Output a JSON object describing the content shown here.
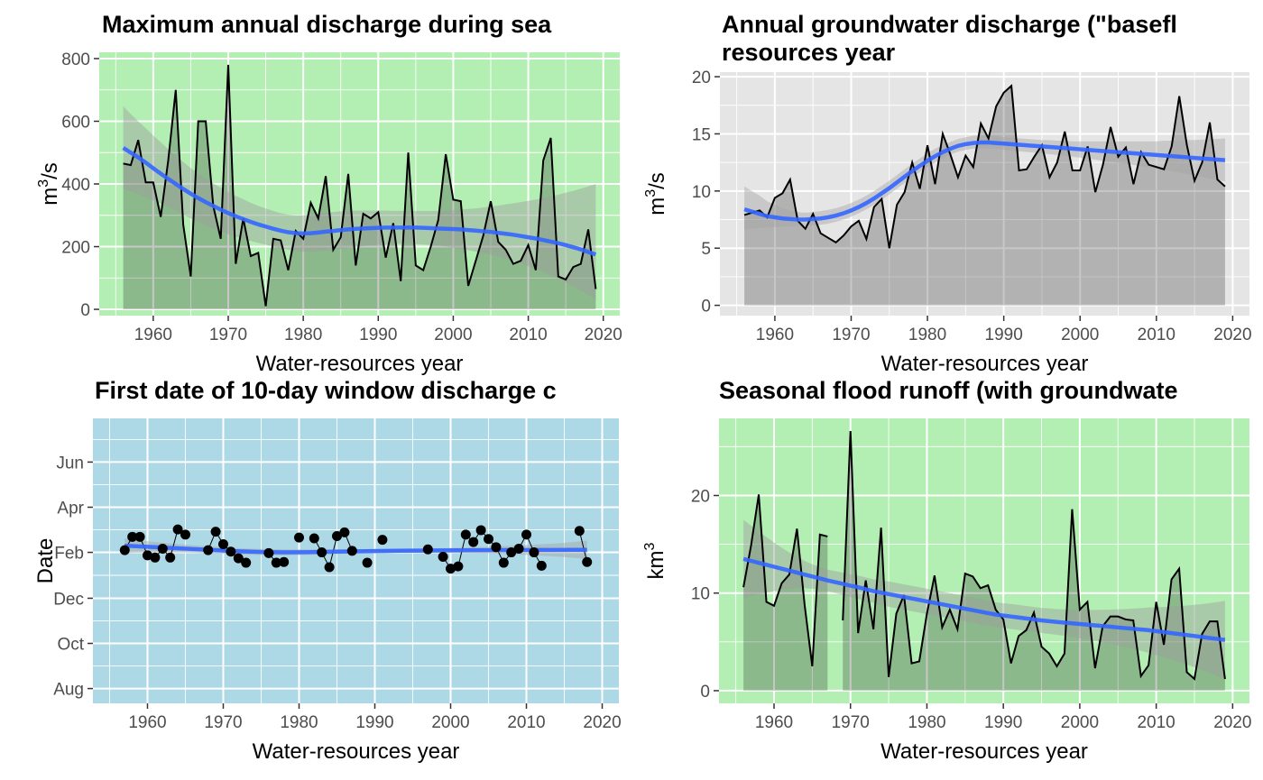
{
  "chart_data": [
    {
      "type": "line",
      "title": "Maximum annual discharge during sea",
      "xlabel": "Water-resources year",
      "ylabel_base": "m",
      "ylabel_sup": "3",
      "ylabel_rest": "/s",
      "xlim": [
        1952.8,
        2022.2
      ],
      "ylim": [
        -20,
        820
      ],
      "xticks": [
        1960,
        1970,
        1980,
        1990,
        2000,
        2010,
        2020
      ],
      "yticks": [
        0,
        200,
        400,
        600,
        800
      ],
      "background_color": "#b3eeb3",
      "grid": true,
      "x": [
        1956,
        1957,
        1958,
        1959,
        1960,
        1961,
        1962,
        1963,
        1964,
        1965,
        1966,
        1967,
        1968,
        1969,
        1970,
        1971,
        1972,
        1973,
        1974,
        1975,
        1976,
        1977,
        1978,
        1979,
        1980,
        1981,
        1982,
        1983,
        1984,
        1985,
        1986,
        1987,
        1988,
        1989,
        1990,
        1991,
        1992,
        1993,
        1994,
        1995,
        1996,
        1997,
        1998,
        1999,
        2000,
        2001,
        2002,
        2003,
        2004,
        2005,
        2006,
        2007,
        2008,
        2009,
        2010,
        2011,
        2012,
        2013,
        2014,
        2015,
        2016,
        2017,
        2018,
        2019
      ],
      "values": [
        465,
        460,
        540,
        405,
        405,
        295,
        475,
        700,
        270,
        105,
        600,
        600,
        330,
        225,
        780,
        145,
        290,
        170,
        180,
        10,
        225,
        220,
        125,
        250,
        225,
        340,
        290,
        425,
        190,
        230,
        432,
        140,
        305,
        290,
        310,
        165,
        275,
        90,
        500,
        140,
        125,
        200,
        285,
        495,
        350,
        345,
        75,
        155,
        235,
        345,
        215,
        190,
        145,
        155,
        205,
        125,
        475,
        547,
        105,
        95,
        135,
        145,
        255,
        65
      ],
      "trend": [
        515,
        500,
        485,
        468,
        450,
        433,
        416,
        400,
        384,
        369,
        355,
        342,
        330,
        318,
        307,
        297,
        288,
        279,
        271,
        264,
        257,
        251,
        246,
        243,
        242,
        243,
        245,
        248,
        250,
        253,
        255,
        257,
        258,
        259,
        260,
        261,
        261,
        261,
        261,
        261,
        260,
        259,
        258,
        257,
        256,
        255,
        253,
        251,
        249,
        247,
        244,
        241,
        238,
        234,
        230,
        226,
        221,
        216,
        211,
        205,
        198,
        191,
        183,
        175
      ],
      "band_low": [
        385,
        377,
        368,
        358,
        348,
        337,
        326,
        314,
        302,
        290,
        279,
        268,
        258,
        249,
        240,
        232,
        225,
        218,
        212,
        206,
        200,
        195,
        190,
        186,
        184,
        184,
        185,
        187,
        190,
        193,
        196,
        199,
        202,
        204,
        206,
        207,
        208,
        209,
        209,
        208,
        207,
        205,
        203,
        200,
        197,
        193,
        189,
        184,
        179,
        174,
        168,
        161,
        154,
        146,
        138,
        129,
        119,
        109,
        98,
        86,
        74,
        60,
        46,
        30
      ],
      "band_high": [
        648,
        623,
        600,
        578,
        555,
        533,
        511,
        490,
        470,
        451,
        433,
        417,
        402,
        388,
        375,
        362,
        351,
        340,
        330,
        322,
        314,
        307,
        302,
        300,
        300,
        302,
        305,
        308,
        310,
        313,
        314,
        315,
        315,
        315,
        315,
        315,
        314,
        314,
        314,
        314,
        314,
        314,
        314,
        315,
        316,
        318,
        320,
        322,
        325,
        328,
        331,
        335,
        338,
        342,
        346,
        350,
        355,
        360,
        366,
        372,
        378,
        385,
        392,
        400
      ],
      "band_fill": "#9e9e9e"
    },
    {
      "type": "line",
      "title": "Annual groundwater discharge (\"basefl",
      "title_line2": "resources year",
      "xlabel": "Water-resources year",
      "ylabel_base": "m",
      "ylabel_sup": "3",
      "ylabel_rest": "/s",
      "xlim": [
        1952.8,
        2022.2
      ],
      "ylim": [
        -0.9,
        20.4
      ],
      "xticks": [
        1960,
        1970,
        1980,
        1990,
        2000,
        2010,
        2020
      ],
      "yticks": [
        0,
        5,
        10,
        15,
        20
      ],
      "background_color": "#e5e5e5",
      "grid": true,
      "x": [
        1956,
        1957,
        1958,
        1959,
        1960,
        1961,
        1962,
        1963,
        1964,
        1965,
        1966,
        1967,
        1968,
        1969,
        1970,
        1971,
        1972,
        1973,
        1974,
        1975,
        1976,
        1977,
        1978,
        1979,
        1980,
        1981,
        1982,
        1983,
        1984,
        1985,
        1986,
        1987,
        1988,
        1989,
        1990,
        1991,
        1992,
        1993,
        1994,
        1995,
        1996,
        1997,
        1998,
        1999,
        2000,
        2001,
        2002,
        2003,
        2004,
        2005,
        2006,
        2007,
        2008,
        2009,
        2010,
        2011,
        2012,
        2013,
        2014,
        2015,
        2016,
        2017,
        2018,
        2019
      ],
      "values": [
        7.9,
        8.1,
        8.3,
        7.7,
        9.4,
        9.8,
        11.0,
        7.4,
        6.7,
        8.0,
        6.3,
        5.9,
        5.5,
        6.1,
        6.9,
        7.4,
        5.8,
        8.6,
        9.3,
        5.0,
        8.8,
        9.9,
        12.5,
        10.2,
        14.0,
        10.6,
        15.0,
        13.2,
        11.2,
        13.1,
        12.1,
        15.9,
        14.6,
        17.4,
        18.6,
        19.2,
        11.8,
        11.9,
        13.0,
        14.0,
        11.2,
        12.5,
        15.2,
        11.8,
        11.8,
        13.9,
        9.9,
        12.3,
        15.6,
        13.0,
        13.8,
        10.6,
        13.4,
        12.3,
        12.1,
        11.9,
        13.9,
        18.3,
        14.0,
        10.9,
        12.5,
        16.0,
        11.0,
        10.4
      ],
      "trend": [
        8.4,
        8.2,
        8.0,
        7.8,
        7.7,
        7.6,
        7.55,
        7.5,
        7.5,
        7.55,
        7.6,
        7.7,
        7.85,
        8.05,
        8.3,
        8.6,
        8.95,
        9.35,
        9.8,
        10.25,
        10.75,
        11.25,
        11.75,
        12.2,
        12.65,
        13.05,
        13.4,
        13.7,
        13.95,
        14.1,
        14.2,
        14.25,
        14.25,
        14.2,
        14.15,
        14.1,
        14.05,
        14.0,
        13.95,
        13.9,
        13.85,
        13.8,
        13.75,
        13.7,
        13.65,
        13.6,
        13.55,
        13.5,
        13.45,
        13.4,
        13.35,
        13.3,
        13.25,
        13.2,
        13.15,
        13.1,
        13.05,
        13.0,
        12.95,
        12.9,
        12.85,
        12.8,
        12.75,
        12.7
      ],
      "band_low": [
        6.6,
        6.7,
        6.75,
        6.8,
        6.85,
        6.9,
        6.9,
        6.95,
        6.95,
        7.0,
        7.05,
        7.15,
        7.3,
        7.5,
        7.75,
        8.05,
        8.4,
        8.8,
        9.25,
        9.7,
        10.2,
        10.7,
        11.2,
        11.65,
        12.1,
        12.5,
        12.9,
        13.2,
        13.45,
        13.6,
        13.7,
        13.72,
        13.72,
        13.68,
        13.62,
        13.55,
        13.48,
        13.42,
        13.36,
        13.3,
        13.22,
        13.15,
        13.08,
        13.0,
        12.92,
        12.84,
        12.75,
        12.66,
        12.57,
        12.48,
        12.38,
        12.28,
        12.18,
        12.07,
        11.96,
        11.85,
        11.73,
        11.61,
        11.49,
        11.36,
        11.23,
        11.1,
        10.96,
        10.82
      ],
      "band_high": [
        10.4,
        10.0,
        9.6,
        9.1,
        8.8,
        8.5,
        8.3,
        8.15,
        8.1,
        8.15,
        8.25,
        8.35,
        8.5,
        8.7,
        8.95,
        9.25,
        9.6,
        10.0,
        10.45,
        10.9,
        11.4,
        11.9,
        12.4,
        12.85,
        13.3,
        13.7,
        14.0,
        14.3,
        14.55,
        14.7,
        14.85,
        14.85,
        14.85,
        14.8,
        14.7,
        14.65,
        14.6,
        14.55,
        14.5,
        14.45,
        14.45,
        14.4,
        14.4,
        14.35,
        14.35,
        14.35,
        14.35,
        14.35,
        14.35,
        14.35,
        14.35,
        14.35,
        14.35,
        14.35,
        14.35,
        14.4,
        14.4,
        14.4,
        14.45,
        14.45,
        14.5,
        14.5,
        14.55,
        14.6
      ],
      "band_fill": "#a3a3a3"
    },
    {
      "type": "scatter",
      "title": "First date of 10-day window discharge c",
      "xlabel": "Water-resources year",
      "ylabel": "Date",
      "xlim": [
        1952.8,
        2022.2
      ],
      "ylim": [
        -20,
        365
      ],
      "xticks": [
        1960,
        1970,
        1980,
        1990,
        2000,
        2010,
        2020
      ],
      "ytick_values": [
        0,
        61,
        122,
        184,
        245,
        306
      ],
      "ytick_labels": [
        "Aug",
        "Oct",
        "Dec",
        "Feb",
        "Apr",
        "Jun"
      ],
      "background_color": "#add8e6",
      "grid": true,
      "points": [
        [
          1957,
          187
        ],
        [
          1958,
          205
        ],
        [
          1959,
          205
        ],
        [
          1960,
          180
        ],
        [
          1961,
          177
        ],
        [
          1962,
          189
        ],
        [
          1963,
          177
        ],
        [
          1964,
          215
        ],
        [
          1965,
          208
        ],
        [
          1968,
          187
        ],
        [
          1969,
          212
        ],
        [
          1970,
          195
        ],
        [
          1971,
          185
        ],
        [
          1972,
          176
        ],
        [
          1973,
          170
        ],
        [
          1976,
          183
        ],
        [
          1977,
          170
        ],
        [
          1978,
          171
        ],
        [
          1980,
          204
        ],
        [
          1982,
          203
        ],
        [
          1983,
          184
        ],
        [
          1984,
          164
        ],
        [
          1985,
          206
        ],
        [
          1986,
          211
        ],
        [
          1987,
          186
        ],
        [
          1989,
          170
        ],
        [
          1991,
          201
        ],
        [
          1997,
          188
        ],
        [
          1999,
          178
        ],
        [
          2000,
          162
        ],
        [
          2001,
          165
        ],
        [
          2002,
          208
        ],
        [
          2003,
          198
        ],
        [
          2004,
          214
        ],
        [
          2005,
          202
        ],
        [
          2006,
          191
        ],
        [
          2007,
          170
        ],
        [
          2008,
          184
        ],
        [
          2009,
          189
        ],
        [
          2010,
          208
        ],
        [
          2011,
          184
        ],
        [
          2012,
          166
        ],
        [
          2017,
          213
        ],
        [
          2018,
          171
        ]
      ],
      "segments": [
        [
          1957,
          1965
        ],
        [
          1968,
          1973
        ],
        [
          1976,
          1978
        ],
        [
          1982,
          1987
        ],
        [
          1999,
          2012
        ],
        [
          2017,
          2018
        ]
      ],
      "trend_x": [
        1957,
        1960,
        1963,
        1966,
        1969,
        1972,
        1975,
        1978,
        1981,
        1984,
        1987,
        1990,
        1993,
        1996,
        1999,
        2002,
        2005,
        2008,
        2011,
        2014,
        2017,
        2018
      ],
      "trend": [
        193,
        191.5,
        190,
        188.5,
        187,
        185.5,
        184.5,
        184,
        184.3,
        184.8,
        185.3,
        185.8,
        186.2,
        186.4,
        186.6,
        186.8,
        187,
        187.1,
        187.2,
        187.3,
        187.4,
        187.4
      ],
      "band_low": [
        183,
        184,
        184,
        183.5,
        182.5,
        181.5,
        180.5,
        180,
        180.5,
        181.5,
        182.5,
        183,
        183.5,
        183.5,
        183.5,
        183,
        182.5,
        181.5,
        180,
        178.5,
        176,
        175
      ],
      "band_high": [
        203,
        199,
        196,
        193.5,
        191.5,
        189.5,
        188.5,
        188,
        188,
        188.1,
        188.1,
        188.6,
        188.9,
        189.3,
        189.7,
        190.6,
        191.5,
        192.7,
        194.4,
        196.1,
        198.8,
        199.8
      ],
      "band_fill": "#a8a8a8"
    },
    {
      "type": "line",
      "title": "Seasonal flood runoff (with groundwate",
      "xlabel": "Water-resources year",
      "ylabel_base": "km",
      "ylabel_sup": "3",
      "ylabel_rest": "",
      "xlim": [
        1952.8,
        2022.2
      ],
      "ylim": [
        -1.3,
        27.9
      ],
      "xticks": [
        1960,
        1970,
        1980,
        1990,
        2000,
        2010,
        2020
      ],
      "yticks": [
        0,
        10,
        20
      ],
      "background_color": "#b3eeb3",
      "grid": true,
      "x": [
        1956,
        1957,
        1958,
        1959,
        1960,
        1961,
        1962,
        1963,
        1964,
        1965,
        1966,
        1967,
        1969,
        1970,
        1971,
        1972,
        1973,
        1974,
        1975,
        1976,
        1977,
        1978,
        1979,
        1980,
        1981,
        1982,
        1983,
        1984,
        1985,
        1986,
        1987,
        1988,
        1989,
        1990,
        1991,
        1992,
        1993,
        1994,
        1995,
        1996,
        1997,
        1998,
        1999,
        2000,
        2001,
        2002,
        2003,
        2004,
        2005,
        2006,
        2007,
        2008,
        2009,
        2010,
        2011,
        2012,
        2013,
        2014,
        2015,
        2016,
        2017,
        2018,
        2019
      ],
      "values": [
        10.6,
        14.9,
        20.1,
        9.1,
        8.7,
        11.0,
        11.9,
        16.6,
        8.8,
        2.5,
        16.0,
        15.8,
        7.2,
        26.6,
        5.9,
        11.3,
        6.3,
        16.7,
        1.4,
        7.9,
        9.8,
        2.8,
        3.0,
        7.9,
        11.8,
        6.5,
        8.3,
        6.3,
        12.0,
        11.7,
        10.5,
        10.8,
        8.3,
        7.3,
        2.8,
        5.6,
        6.2,
        8.0,
        4.5,
        3.8,
        2.5,
        3.8,
        18.6,
        8.3,
        9.1,
        2.3,
        6.6,
        7.6,
        7.6,
        7.3,
        7.2,
        1.5,
        2.6,
        9.1,
        4.7,
        11.4,
        12.5,
        1.9,
        1.2,
        5.8,
        7.1,
        7.1,
        1.2
      ],
      "trend": [
        13.5,
        13.3,
        13.1,
        12.9,
        12.7,
        12.5,
        12.3,
        12.1,
        11.9,
        11.7,
        11.5,
        11.3,
        10.95,
        10.75,
        10.6,
        10.4,
        10.2,
        10.05,
        9.9,
        9.75,
        9.6,
        9.45,
        9.3,
        9.15,
        9.0,
        8.85,
        8.7,
        8.55,
        8.4,
        8.25,
        8.1,
        7.95,
        7.8,
        7.7,
        7.6,
        7.5,
        7.4,
        7.3,
        7.2,
        7.12,
        7.04,
        6.97,
        6.9,
        6.83,
        6.76,
        6.69,
        6.62,
        6.55,
        6.48,
        6.41,
        6.34,
        6.27,
        6.2,
        6.1,
        6.0,
        5.9,
        5.8,
        5.7,
        5.6,
        5.5,
        5.4,
        5.3,
        5.2
      ],
      "band_low": [
        9.5,
        9.7,
        9.9,
        10.05,
        10.2,
        10.35,
        10.45,
        10.5,
        10.5,
        10.45,
        10.35,
        10.2,
        9.8,
        9.6,
        9.4,
        9.2,
        9.0,
        8.8,
        8.6,
        8.45,
        8.3,
        8.15,
        8.0,
        7.85,
        7.7,
        7.55,
        7.4,
        7.25,
        7.1,
        6.95,
        6.8,
        6.67,
        6.55,
        6.43,
        6.32,
        6.22,
        6.12,
        6.02,
        5.92,
        5.82,
        5.72,
        5.62,
        5.5,
        5.38,
        5.25,
        5.1,
        4.95,
        4.8,
        4.63,
        4.45,
        4.27,
        4.08,
        3.88,
        3.65,
        3.42,
        3.18,
        2.93,
        2.67,
        2.4,
        2.12,
        1.83,
        1.52,
        1.2
      ],
      "band_high": [
        17.5,
        16.9,
        16.3,
        15.75,
        15.2,
        14.65,
        14.15,
        13.7,
        13.3,
        12.95,
        12.65,
        12.4,
        12.1,
        11.9,
        11.8,
        11.6,
        11.4,
        11.3,
        11.2,
        11.05,
        10.9,
        10.75,
        10.6,
        10.45,
        10.3,
        10.15,
        10.0,
        9.85,
        9.7,
        9.55,
        9.4,
        9.23,
        9.05,
        8.97,
        8.88,
        8.78,
        8.68,
        8.58,
        8.48,
        8.42,
        8.36,
        8.32,
        8.3,
        8.28,
        8.27,
        8.28,
        8.29,
        8.3,
        8.33,
        8.37,
        8.41,
        8.46,
        8.52,
        8.55,
        8.58,
        8.62,
        8.67,
        8.73,
        8.8,
        8.88,
        8.97,
        9.08,
        9.2
      ],
      "band_fill": "#9e9e9e"
    }
  ]
}
